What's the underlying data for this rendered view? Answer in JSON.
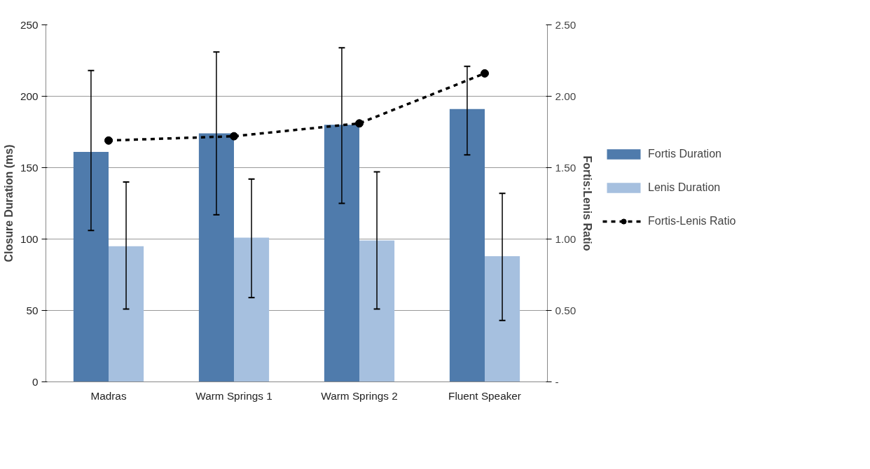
{
  "chart_data": {
    "type": "bar",
    "categories": [
      "Madras",
      "Warm Springs 1",
      "Warm Springs 2",
      "Fluent Speaker"
    ],
    "ylabel": "Closure Duration (ms)",
    "y2label": "Fortis:Lenis Ratio",
    "ylim": [
      0,
      250
    ],
    "yticks": [
      0,
      50,
      100,
      150,
      200,
      250
    ],
    "y2lim": [
      0,
      2.5
    ],
    "y2ticks": [
      {
        "value": 0,
        "label": "-"
      },
      {
        "value": 0.5,
        "label": "0.50"
      },
      {
        "value": 1.0,
        "label": "1.00"
      },
      {
        "value": 1.5,
        "label": "1.50"
      },
      {
        "value": 2.0,
        "label": "2.00"
      },
      {
        "value": 2.5,
        "label": "2.50"
      }
    ],
    "grid": "y",
    "legend": "right",
    "series": [
      {
        "name": "Fortis Duration",
        "color": "#4f7bac",
        "values": [
          161,
          174,
          180,
          191
        ],
        "errors": [
          [
            106,
            218
          ],
          [
            117,
            231
          ],
          [
            125,
            234
          ],
          [
            159,
            221
          ]
        ]
      },
      {
        "name": "Lenis Duration",
        "color": "#a6c0df",
        "values": [
          95,
          101,
          99,
          88
        ],
        "errors": [
          [
            51,
            140
          ],
          [
            59,
            142
          ],
          [
            51,
            147
          ],
          [
            43,
            132
          ]
        ]
      },
      {
        "name": "Fortis-Lenis Ratio",
        "type": "line",
        "axis": "y2",
        "color": "#000000",
        "marker": "circle",
        "line_style": "dashed",
        "values": [
          1.69,
          1.72,
          1.81,
          2.16
        ]
      }
    ]
  }
}
